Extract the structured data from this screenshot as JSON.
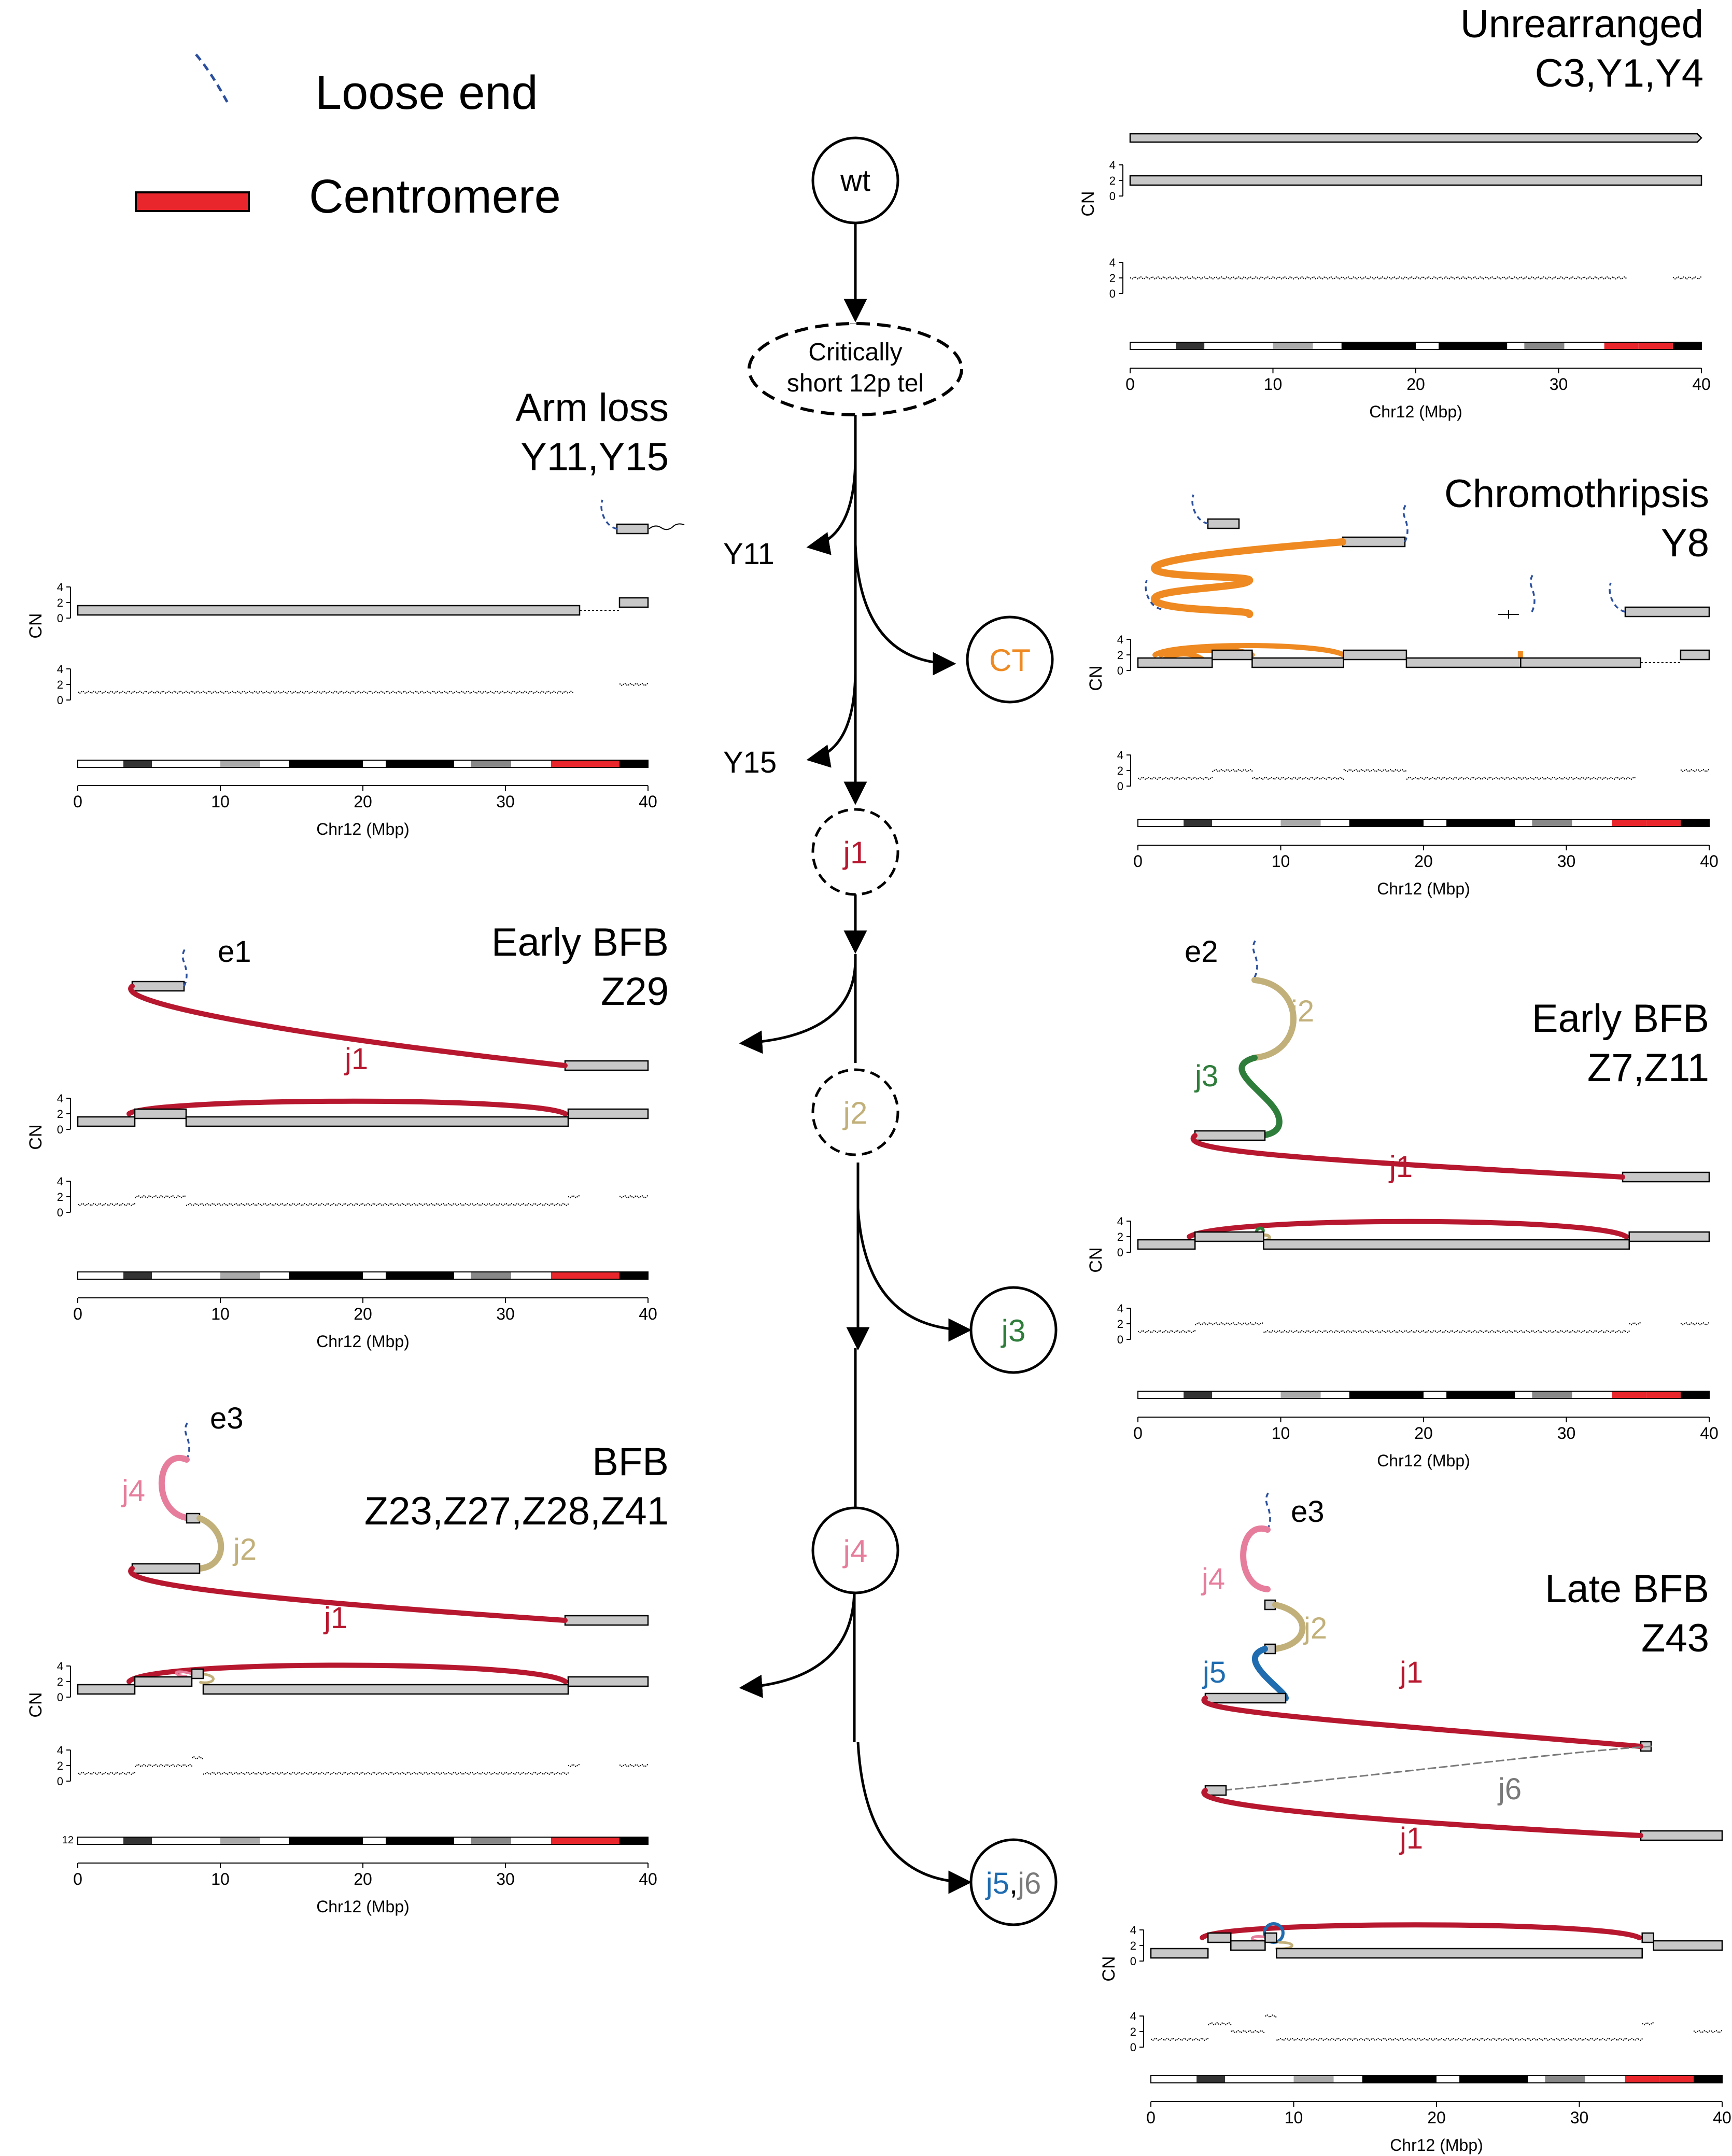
{
  "legend": {
    "loose_end": "Loose end",
    "centromere": "Centromere"
  },
  "colors": {
    "j1": "#b7182f",
    "j2": "#c2b07a",
    "j3": "#2f7d3b",
    "j4": "#e77d9c",
    "j5": "#1f6cb0",
    "j6": "#7a7a7a",
    "ct": "#ef8a22",
    "loose": "#2b4f9e",
    "centromere": "#e8262b",
    "segment": "#c8c8c8"
  },
  "tree": {
    "wt": "wt",
    "critical_line1": "Critically",
    "critical_line2": "short 12p tel",
    "y11": "Y11",
    "y15": "Y15",
    "ct": "CT",
    "j1": "j1",
    "j2": "j2",
    "j3": "j3",
    "j4": "j4",
    "j5": "j5",
    "comma": ",",
    "j6": "j6"
  },
  "axes": {
    "cn": "CN",
    "xlabel": "Chr12 (Mbp)",
    "xticks": [
      "0",
      "10",
      "20",
      "30",
      "40"
    ],
    "yticks": [
      "0",
      "2",
      "4"
    ],
    "ideogram_label": "12"
  },
  "panels": {
    "unrearranged": {
      "title1": "Unrearranged",
      "title2": "C3,Y1,Y4"
    },
    "armloss": {
      "title1": "Arm loss",
      "title2": "Y11,Y15"
    },
    "chromothripsis": {
      "title1": "Chromothripsis",
      "title2": "Y8"
    },
    "early_z29": {
      "title1": "Early BFB",
      "title2": "Z29",
      "end": "e1",
      "j1": "j1"
    },
    "early_z7": {
      "title1": "Early BFB",
      "title2": "Z7,Z11",
      "end": "e2",
      "j1": "j1",
      "j2": "j2",
      "j3": "j3"
    },
    "bfb": {
      "title1": "BFB",
      "title2": "Z23,Z27,Z28,Z41",
      "end": "e3",
      "j1": "j1",
      "j2": "j2",
      "j4": "j4"
    },
    "late": {
      "title1": "Late BFB",
      "title2": "Z43",
      "end": "e3",
      "j1a": "j1",
      "j1b": "j1",
      "j2": "j2",
      "j4": "j4",
      "j5": "j5",
      "j6": "j6"
    }
  }
}
